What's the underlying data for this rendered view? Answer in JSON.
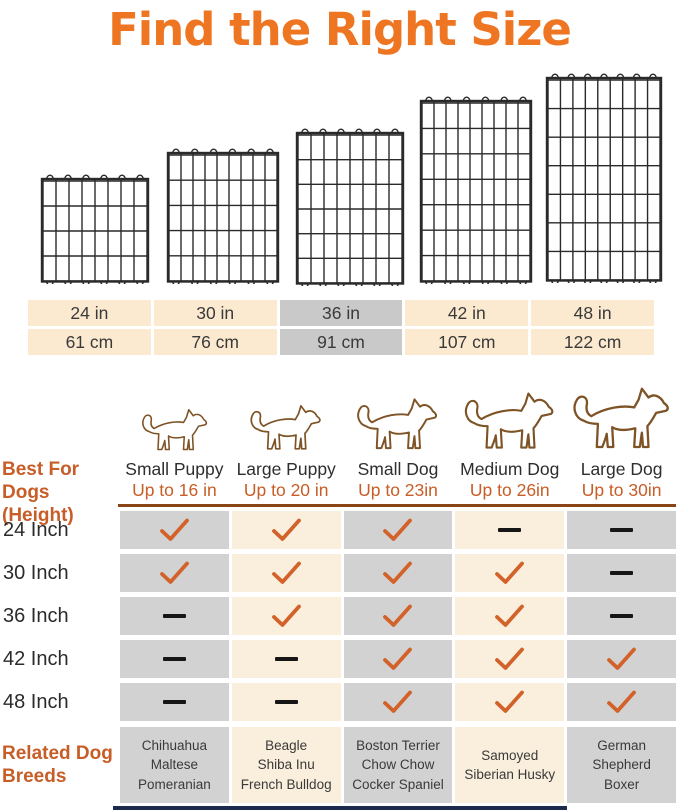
{
  "chart_data": {
    "type": "table",
    "title": "Find the Right Size",
    "size_header": {
      "inches": [
        "24 in",
        "30 in",
        "36 in",
        "42 in",
        "48 in"
      ],
      "centimeters": [
        "61 cm",
        "76 cm",
        "91 cm",
        "107 cm",
        "122 cm"
      ],
      "highlighted_column": "36 in"
    },
    "row_axis_label": "Best For Dogs\n(Height)",
    "columns": [
      {
        "dog_type": "Small Puppy",
        "height": "Up to 16 in",
        "icon": "small-puppy-outline-icon"
      },
      {
        "dog_type": "Large Puppy",
        "height": "Up to 20 in",
        "icon": "large-puppy-outline-icon"
      },
      {
        "dog_type": "Small Dog",
        "height": "Up to 23in",
        "icon": "small-dog-outline-icon"
      },
      {
        "dog_type": "Medium Dog",
        "height": "Up to 26in",
        "icon": "medium-dog-outline-icon"
      },
      {
        "dog_type": "Large Dog",
        "height": "Up to 30in",
        "icon": "large-dog-outline-icon"
      }
    ],
    "rows": [
      {
        "label": "24 Inch",
        "cells": [
          "check",
          "check",
          "check",
          "dash",
          "dash"
        ]
      },
      {
        "label": "30 Inch",
        "cells": [
          "check",
          "check",
          "check",
          "check",
          "dash"
        ]
      },
      {
        "label": "36 Inch",
        "cells": [
          "dash",
          "check",
          "check",
          "check",
          "dash"
        ]
      },
      {
        "label": "42 Inch",
        "cells": [
          "dash",
          "dash",
          "check",
          "check",
          "check"
        ]
      },
      {
        "label": "48 Inch",
        "cells": [
          "dash",
          "dash",
          "check",
          "check",
          "check"
        ]
      }
    ],
    "breeds_axis_label": "Related Dog\nBreeds",
    "breeds": [
      "Chihuahua\nMaltese\nPomeranian",
      "Beagle\nShiba Inu\nFrench Bulldog",
      "Boston Terrier\nChow Chow\nCocker Spaniel",
      "Samoyed\nSiberian Husky",
      "German\nShepherd\nBoxer"
    ]
  },
  "colors": {
    "title_orange": "#EE7623",
    "label_orange": "#C75D27",
    "check_orange": "#D2622A",
    "table_cream": "#FCEAD0",
    "grid_cream": "#FAEEDC",
    "grid_gray": "#D2D2D2",
    "table_highlight_gray": "#C9C9C9",
    "dog_outline_brown": "#7E5427",
    "divider_brown": "#8A4516",
    "bottom_bar_navy": "#1C2B4D",
    "text_dark": "#303030"
  }
}
